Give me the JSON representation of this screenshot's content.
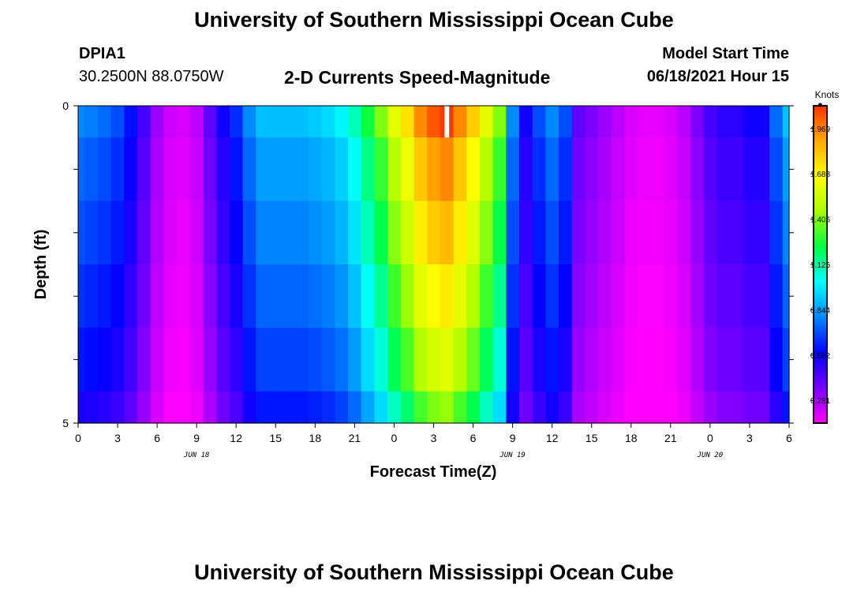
{
  "page": {
    "title_top": "University of Southern Mississippi Ocean Cube",
    "title_bottom": "University of Southern Mississippi Ocean Cube",
    "station_id": "DPIA1",
    "station_coords": "30.2500N  88.0750W",
    "plot_title": "2-D Currents Speed-Magnitude",
    "model_start_label": "Model Start Time",
    "model_start_value": "06/18/2021 Hour 15"
  },
  "colors": {
    "colormap": [
      "#ff00ff",
      "#7700ff",
      "#0000ff",
      "#0088ff",
      "#00ffff",
      "#00ff44",
      "#aaff00",
      "#ffff00",
      "#ffaa00",
      "#ff3300"
    ],
    "max_marker": "#ffffff"
  },
  "chart_data": {
    "type": "heatmap",
    "xlabel": "Forecast Time(Z)",
    "ylabel": "Depth (ft)",
    "x_tick_labels": [
      "0",
      "3",
      "6",
      "9",
      "12",
      "15",
      "18",
      "21",
      "0",
      "3",
      "6",
      "9",
      "12",
      "15",
      "18",
      "21",
      "0",
      "3",
      "6"
    ],
    "date_labels": [
      "JUN 18",
      "JUN 19",
      "JUN 20"
    ],
    "y_tick_labels": [
      "0",
      "5"
    ],
    "ylim": [
      0,
      5
    ],
    "colorbar": {
      "unit_label": "Knots",
      "ticks": [
        "0.281",
        "0.562",
        "0.844",
        "1.125",
        "1.406",
        "1.688",
        "1.969"
      ],
      "range": [
        0.14,
        2.11
      ]
    },
    "x_hours": [
      0,
      1,
      2,
      3,
      4,
      5,
      6,
      7,
      8,
      9,
      10,
      11,
      12,
      13,
      14,
      15,
      16,
      17,
      18,
      19,
      20,
      21,
      22,
      23,
      24,
      25,
      26,
      27,
      28,
      29,
      30,
      31,
      32,
      33,
      34,
      35,
      36,
      37,
      38,
      39,
      40,
      41,
      42,
      43,
      44,
      45,
      46,
      47,
      48,
      49,
      50,
      51,
      52,
      53,
      54
    ],
    "depth_levels_ft": [
      0.25,
      1.0,
      2.0,
      3.0,
      4.0,
      4.75
    ],
    "surface_speed_knots": [
      0.8,
      0.78,
      0.75,
      0.7,
      0.6,
      0.45,
      0.3,
      0.22,
      0.2,
      0.25,
      0.4,
      0.55,
      0.65,
      0.8,
      0.9,
      0.9,
      0.9,
      0.9,
      0.92,
      0.95,
      1.0,
      1.1,
      1.25,
      1.4,
      1.6,
      1.75,
      1.95,
      2.05,
      2.1,
      1.95,
      1.8,
      1.6,
      1.4,
      0.8,
      0.55,
      0.7,
      0.8,
      0.7,
      0.4,
      0.35,
      0.3,
      0.25,
      0.2,
      0.18,
      0.18,
      0.2,
      0.25,
      0.35,
      0.45,
      0.5,
      0.5,
      0.55,
      0.55,
      0.75,
      0.9
    ],
    "depth_factors": [
      1.0,
      0.93,
      0.88,
      0.82,
      0.76,
      0.68
    ]
  }
}
